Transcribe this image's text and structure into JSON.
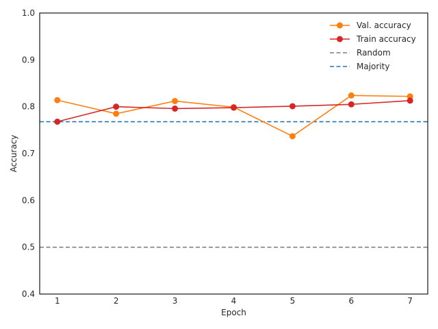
{
  "chart_data": {
    "type": "line",
    "title": "",
    "xlabel": "Epoch",
    "ylabel": "Accuracy",
    "x": [
      1,
      2,
      3,
      4,
      5,
      6,
      7
    ],
    "xticks": [
      "1",
      "2",
      "3",
      "4",
      "5",
      "6",
      "7"
    ],
    "xlim": [
      0.7,
      7.3
    ],
    "ylim": [
      0.4,
      1.0
    ],
    "yticks": [
      "0.4",
      "0.5",
      "0.6",
      "0.7",
      "0.8",
      "0.9",
      "1.0"
    ],
    "grid": false,
    "legend": "top-right",
    "series": [
      {
        "name": "Val. accuracy",
        "values": [
          0.814,
          0.785,
          0.812,
          0.799,
          0.737,
          0.824,
          0.822
        ],
        "color": "#ff7f0e",
        "style": "solid",
        "marker": "circle"
      },
      {
        "name": "Train accuracy",
        "values": [
          0.768,
          0.8,
          0.796,
          0.798,
          0.801,
          0.805,
          0.813
        ],
        "color": "#d62728",
        "style": "solid",
        "marker": "circle"
      }
    ],
    "reference_lines": [
      {
        "name": "Random",
        "y": 0.5,
        "color": "#7f7f7f",
        "style": "dashed"
      },
      {
        "name": "Majority",
        "y": 0.768,
        "color": "#1f77b4",
        "style": "dashed"
      }
    ]
  }
}
